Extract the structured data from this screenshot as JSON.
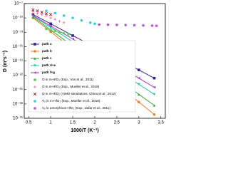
{
  "chart_data": {
    "type": "line",
    "xlabel": "1000/T (K⁻¹)",
    "ylabel": "D (m²s⁻¹)",
    "xlim": [
      0.4,
      3.6
    ],
    "xticks": [
      0.5,
      1.0,
      1.5,
      2.0,
      2.5,
      3.0,
      3.5
    ],
    "ylim": [
      1e-31,
      1e-07
    ],
    "log_y": true,
    "yticks": [
      {
        "value": 1e-07,
        "label": "10⁻⁷"
      },
      {
        "value": 1e-10,
        "label": "10⁻¹⁰"
      },
      {
        "value": 1e-13,
        "label": "10⁻¹³"
      },
      {
        "value": 1e-16,
        "label": "10⁻¹⁶"
      },
      {
        "value": 1e-19,
        "label": "10⁻¹⁹"
      },
      {
        "value": 1e-22,
        "label": "10⁻²²"
      },
      {
        "value": 1e-25,
        "label": "10⁻²⁵"
      },
      {
        "value": 1e-28,
        "label": "10⁻²⁸"
      },
      {
        "value": 1e-31,
        "label": "10⁻³¹"
      }
    ],
    "legend": "lower left",
    "series": [
      {
        "name": "path a",
        "color": "#3a1f8c",
        "marker": "square",
        "line": true,
        "x": [
          0.6,
          1.0,
          1.5,
          2.0,
          2.5,
          3.0,
          3.35
        ],
        "values": [
          5e-10,
          6e-12,
          2e-14,
          8e-17,
          3e-19,
          1.3e-21,
          2.5e-23
        ]
      },
      {
        "name": "path b",
        "color": "#f07f1c",
        "marker": "circle",
        "line": true,
        "x": [
          0.6,
          1.0,
          1.5,
          2.0,
          2.5,
          3.0,
          3.35
        ],
        "values": [
          1e-10,
          1.3e-13,
          2.5e-17,
          5e-21,
          1e-24,
          2.5e-28,
          6e-31
        ]
      },
      {
        "name": "path c",
        "color": "#33aa33",
        "marker": "triangle",
        "line": true,
        "x": [
          0.6,
          1.0,
          1.5,
          2.0,
          2.5,
          3.0,
          3.35
        ],
        "values": [
          1.6e-10,
          3e-13,
          1.3e-16,
          6e-20,
          2.5e-23,
          1e-26,
          5e-29
        ]
      },
      {
        "name": "path d+e",
        "color": "#1fc9a0",
        "marker": "triangle-down",
        "line": true,
        "x": [
          0.6,
          1.0,
          1.5,
          2.0,
          2.5,
          3.0,
          3.35
        ],
        "values": [
          2.5e-10,
          1e-12,
          1e-15,
          1e-18,
          1.3e-21,
          1.3e-24,
          1e-26
        ]
      },
      {
        "name": "path f+g",
        "color": "#b030c8",
        "marker": "triangle-left",
        "line": true,
        "x": [
          0.6,
          1.0,
          1.5,
          2.0,
          2.5,
          3.0,
          3.35
        ],
        "values": [
          3e-10,
          2e-12,
          4e-15,
          8e-18,
          1.3e-20,
          2.5e-23,
          3e-25
        ]
      },
      {
        "name": "O in m-HfO₂ (Exp., Vos et al., 2011)",
        "color": "#55cc55",
        "marker": "circle",
        "line": false,
        "x": [
          0.9,
          1.0,
          1.1,
          1.2,
          1.3,
          1.4
        ],
        "values": [
          5e-13,
          3e-13,
          2e-13,
          1e-13,
          6e-14,
          4e-14
        ]
      },
      {
        "name": "O in m-HfO₂ (Exp., Mueller et al., 2018)",
        "color": "#ff66aa",
        "marker": "cross",
        "line": false,
        "x": [
          0.6,
          0.7,
          0.8,
          0.9,
          1.0,
          1.1,
          1.2,
          1.3
        ],
        "values": [
          2e-09,
          1e-09,
          5e-10,
          3e-10,
          1e-10,
          5e-11,
          2e-11,
          1e-11
        ]
      },
      {
        "name": "O in m-HfO₂ (AIMD simulations, China et al., 2012)",
        "color": "#8b1a1a",
        "marker": "x",
        "line": false,
        "x": [
          0.6,
          0.7,
          0.8,
          0.9,
          1.0
        ],
        "values": [
          5e-09,
          3e-09,
          1.5e-09,
          8e-10,
          5e-10
        ]
      },
      {
        "name": "Vₒ in m-HfO₂ (Exp., Mueller et al., 2018)",
        "color": "#33ccee",
        "marker": "circle",
        "line": false,
        "x": [
          0.9,
          1.1,
          1.3,
          1.5,
          1.7,
          1.9,
          2.0
        ],
        "values": [
          3e-09,
          1e-09,
          3e-10,
          1e-10,
          3e-11,
          1e-11,
          6e-12
        ]
      },
      {
        "name": "Vₒ in amorphous-HfO₂ (Exp., Zafar et al., 2011)",
        "color": "#c050e0",
        "marker": "circle",
        "line": false,
        "x": [
          2.1,
          2.3,
          2.5,
          2.7,
          2.9,
          3.1,
          3.3,
          3.4
        ],
        "values": [
          4e-12,
          3.8e-12,
          3.5e-12,
          3.2e-12,
          3e-12,
          2.7e-12,
          2.4e-12,
          2.2e-12
        ]
      }
    ]
  }
}
